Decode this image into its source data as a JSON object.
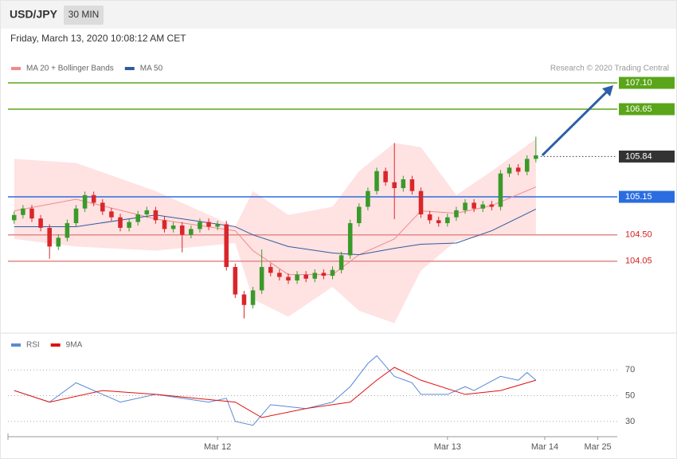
{
  "header": {
    "symbol": "USD/JPY",
    "interval": "30 MIN",
    "timestamp": "Friday, March 13, 2020 10:08:12 AM CET"
  },
  "chart_data": [
    {
      "type": "candlestick",
      "credit": "Research © 2020 Trading Central",
      "xlim": [
        -0.7,
        68.2
      ],
      "ylim": [
        102.86,
        107.7
      ],
      "up_color": "#3a9a2a",
      "down_color": "#d9262b",
      "open": [
        104.75,
        104.84,
        104.95,
        104.78,
        104.62,
        104.3,
        104.45,
        104.7,
        104.95,
        105.18,
        105.05,
        104.9,
        104.8,
        104.62,
        104.72,
        104.85,
        104.92,
        104.75,
        104.6,
        104.66,
        104.5,
        104.6,
        104.72,
        104.64,
        104.68,
        103.95,
        103.48,
        103.3,
        103.55,
        103.95,
        103.85,
        103.78,
        103.72,
        103.82,
        103.75,
        103.85,
        103.8,
        103.9,
        104.15,
        104.7,
        104.98,
        105.25,
        105.59,
        105.4,
        105.3,
        105.45,
        105.25,
        104.85,
        104.75,
        104.7,
        104.8,
        104.92,
        105.05,
        104.95,
        105.02,
        104.98,
        105.55,
        105.65,
        105.58,
        105.8
      ],
      "high": [
        104.9,
        105.01,
        105.01,
        104.84,
        104.68,
        104.51,
        104.76,
        105.01,
        105.24,
        105.24,
        105.11,
        104.96,
        104.86,
        104.78,
        104.91,
        104.98,
        104.98,
        104.81,
        104.72,
        104.72,
        104.66,
        104.78,
        104.78,
        104.74,
        104.74,
        104.01,
        103.54,
        103.61,
        104.25,
        104.01,
        103.91,
        103.84,
        103.88,
        103.88,
        103.91,
        103.91,
        103.96,
        104.21,
        104.76,
        105.04,
        105.31,
        105.65,
        105.65,
        106.07,
        105.51,
        105.51,
        105.31,
        104.91,
        104.81,
        104.86,
        104.98,
        105.11,
        105.11,
        105.08,
        105.08,
        105.61,
        105.71,
        105.71,
        105.86,
        106.18
      ],
      "low": [
        104.69,
        104.78,
        104.72,
        104.56,
        104.09,
        104.24,
        104.39,
        104.64,
        104.89,
        104.99,
        104.84,
        104.74,
        104.56,
        104.56,
        104.66,
        104.79,
        104.69,
        104.54,
        104.54,
        104.2,
        104.44,
        104.54,
        104.58,
        104.58,
        103.89,
        103.42,
        103.07,
        103.24,
        103.49,
        103.79,
        103.72,
        103.66,
        103.66,
        103.69,
        103.69,
        103.74,
        103.74,
        103.84,
        104.09,
        104.64,
        104.92,
        105.19,
        105.34,
        104.77,
        105.24,
        105.19,
        104.79,
        104.69,
        104.64,
        104.64,
        104.74,
        104.86,
        104.89,
        104.89,
        104.92,
        104.92,
        105.49,
        105.52,
        105.52,
        105.74
      ],
      "close": [
        104.84,
        104.95,
        104.78,
        104.62,
        104.3,
        104.45,
        104.7,
        104.95,
        105.18,
        105.05,
        104.9,
        104.8,
        104.62,
        104.72,
        104.85,
        104.92,
        104.75,
        104.6,
        104.66,
        104.5,
        104.6,
        104.72,
        104.64,
        104.68,
        103.95,
        103.48,
        103.3,
        103.55,
        103.95,
        103.85,
        103.78,
        103.72,
        103.82,
        103.75,
        103.85,
        103.8,
        103.9,
        104.15,
        104.7,
        104.98,
        105.25,
        105.59,
        105.4,
        105.3,
        105.45,
        105.25,
        104.85,
        104.75,
        104.7,
        104.8,
        104.92,
        105.05,
        104.95,
        105.02,
        104.98,
        105.55,
        105.65,
        105.58,
        105.8,
        105.86
      ],
      "bands": {
        "color": "#ffd5d5",
        "x": [
          0,
          7,
          16,
          25,
          27,
          31,
          36,
          39,
          43,
          46,
          50,
          54,
          59
        ],
        "upper": [
          105.8,
          105.73,
          105.25,
          104.64,
          105.25,
          104.84,
          104.98,
          105.59,
          106.07,
          106.0,
          105.18,
          105.59,
          106.14
        ],
        "lower": [
          104.43,
          104.3,
          104.23,
          104.36,
          103.4,
          103.1,
          103.61,
          103.2,
          102.99,
          103.89,
          104.4,
          104.5,
          104.5
        ]
      },
      "series": [
        {
          "name": "MA 20 + Bollinger Bands",
          "color": "#f08a8a",
          "x": [
            0,
            7,
            16,
            25,
            27,
            31,
            36,
            39,
            43,
            46,
            50,
            54,
            59
          ],
          "values": [
            104.91,
            105.11,
            104.77,
            104.57,
            104.23,
            103.82,
            103.82,
            104.16,
            104.43,
            104.91,
            104.87,
            105.0,
            105.32
          ]
        },
        {
          "name": "MA 50",
          "color": "#2f5b9e",
          "x": [
            0,
            7,
            16,
            25,
            27,
            31,
            36,
            39,
            43,
            46,
            50,
            54,
            59
          ],
          "values": [
            104.64,
            104.64,
            104.84,
            104.64,
            104.5,
            104.3,
            104.19,
            104.16,
            104.27,
            104.34,
            104.36,
            104.57,
            104.94
          ]
        }
      ],
      "levels": [
        {
          "price": {
            "value": 107.1,
            "label": "107.10"
          },
          "color": "#5aa51a",
          "style": "solid",
          "boxed": true
        },
        {
          "price": 106.65,
          "color": "#5aa51a",
          "style": "solid",
          "boxed": true
        },
        {
          "price": 105.84,
          "color": "#333333",
          "style": "dotted",
          "boxed": true
        },
        {
          "price": 105.15,
          "color": "#2b6de0",
          "style": "solid",
          "boxed": true
        },
        {
          "price": {
            "value": 104.5,
            "label": "104.50"
          },
          "color": "#e08a8a",
          "style": "solid",
          "boxed": false
        },
        {
          "price": 104.05,
          "color": "#e08a8a",
          "style": "solid",
          "boxed": false
        }
      ]
    },
    {
      "type": "line",
      "xlim": [
        -0.7,
        68.2
      ],
      "ylim": [
        20,
        85
      ],
      "yticks": [
        30,
        50,
        70
      ],
      "grid": true,
      "xticks": [
        {
          "value": 23,
          "label": "Mar 12"
        },
        {
          "value": 49,
          "label": "Mar 13"
        },
        {
          "value": 60,
          "label": "Mar 14"
        },
        {
          "value": 66,
          "label": "Mar 25"
        }
      ],
      "series": [
        {
          "name": "RSI",
          "color": "#5b8ad6",
          "x": [
            0,
            4,
            7,
            12,
            16,
            22,
            24,
            25,
            27,
            29,
            33,
            36,
            38,
            40,
            41,
            43,
            45,
            46,
            49,
            51,
            52,
            55,
            57,
            58,
            59
          ],
          "values": [
            54,
            45,
            60,
            45,
            51,
            45,
            48,
            30,
            27,
            43,
            40,
            45,
            57,
            75,
            81,
            65,
            60,
            51,
            51,
            57,
            54,
            65,
            62,
            68,
            62
          ]
        },
        {
          "name": "9MA",
          "color": "#e01010",
          "x": [
            0,
            4,
            10,
            16,
            25,
            28,
            33,
            38,
            41,
            43,
            46,
            51,
            55,
            59
          ],
          "values": [
            54,
            45,
            54,
            51,
            45,
            33,
            40,
            45,
            62,
            72,
            62,
            51,
            54,
            62
          ]
        }
      ]
    }
  ]
}
